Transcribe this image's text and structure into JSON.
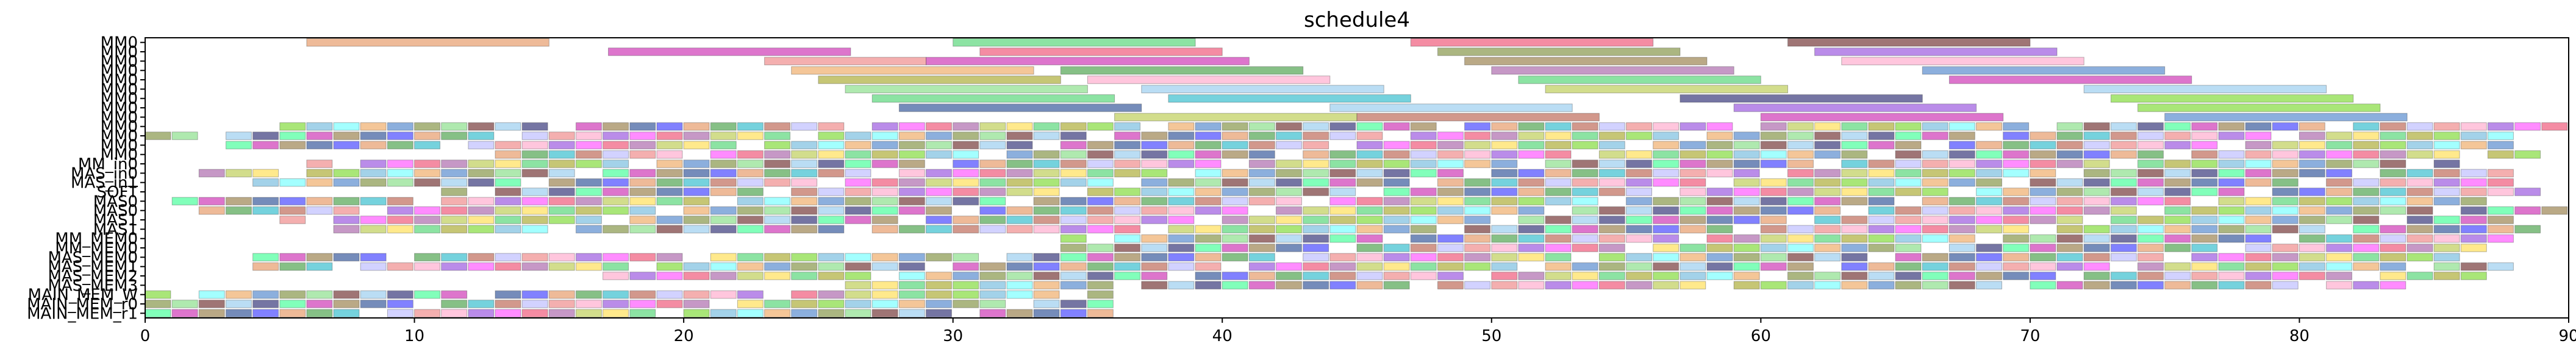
{
  "chart_data": {
    "type": "bar",
    "subtype": "gantt",
    "title": "schedule4",
    "xlabel": "",
    "ylabel": "",
    "xlim": [
      0,
      90
    ],
    "x_ticks": [
      0,
      10,
      20,
      30,
      40,
      50,
      60,
      70,
      80,
      90
    ],
    "grid": false,
    "legend": "none",
    "rows": [
      "MM0",
      "MM0",
      "MM0",
      "MM0",
      "MM0",
      "MM0",
      "MM0",
      "MM0",
      "MM0",
      "MM0",
      "MM0",
      "MM0",
      "MM0",
      "MM_in0",
      "MAS_in0",
      "MAS_in1",
      "SOFT",
      "MAS0",
      "MAS0",
      "MAS1",
      "MAS1",
      "MM_MEM0",
      "MM_MEM0",
      "MAS_MEM0",
      "MAS_MEM1",
      "MAS_MEM2",
      "MAS_MEM3",
      "MAIN_MEM_W",
      "MAIN_MEM_r0",
      "MAIN_MEM_r1"
    ],
    "palette": [
      "#e8a070",
      "#60d880",
      "#d040b8",
      "#f06080",
      "#7a4040",
      "#f09090",
      "#f0b070",
      "#58a858",
      "#b0b040",
      "#a08858",
      "#b070b0",
      "#a0d0f0",
      "#ffb0d0",
      "#6090d0",
      "#40c0d0",
      "#88dd44",
      "#4060a0",
      "#c0d060",
      "#404080",
      "#a060e0",
      "#8a9a50",
      "#c07060",
      "#80c0e0",
      "#5050ff",
      "#ffe060",
      "#50ffa0",
      "#ff60ff",
      "#90e090",
      "#c0c0ff",
      "#80ffff"
    ],
    "bars": [
      {
        "row": 0,
        "start": 6.0,
        "end": 15.0,
        "c": 0
      },
      {
        "row": 0,
        "start": 30.0,
        "end": 39.0,
        "c": 1
      },
      {
        "row": 0,
        "start": 47.0,
        "end": 56.0,
        "c": 3
      },
      {
        "row": 0,
        "start": 61.0,
        "end": 70.0,
        "c": 4
      },
      {
        "row": 1,
        "start": 17.2,
        "end": 26.2,
        "c": 2
      },
      {
        "row": 1,
        "start": 31.0,
        "end": 40.0,
        "c": 3
      },
      {
        "row": 1,
        "start": 48.0,
        "end": 57.0,
        "c": 20
      },
      {
        "row": 1,
        "start": 62.0,
        "end": 71.0,
        "c": 19
      },
      {
        "row": 2,
        "start": 23.0,
        "end": 29.0,
        "c": 5
      },
      {
        "row": 2,
        "start": 29.0,
        "end": 41.0,
        "c": 2
      },
      {
        "row": 2,
        "start": 49.0,
        "end": 58.0,
        "c": 9
      },
      {
        "row": 2,
        "start": 63.0,
        "end": 72.0,
        "c": 12
      },
      {
        "row": 3,
        "start": 24.0,
        "end": 33.0,
        "c": 6
      },
      {
        "row": 3,
        "start": 34.0,
        "end": 43.0,
        "c": 7
      },
      {
        "row": 3,
        "start": 50.0,
        "end": 59.0,
        "c": 10
      },
      {
        "row": 3,
        "start": 66.0,
        "end": 75.0,
        "c": 13
      },
      {
        "row": 4,
        "start": 25.0,
        "end": 34.0,
        "c": 8
      },
      {
        "row": 4,
        "start": 35.0,
        "end": 44.0,
        "c": 12
      },
      {
        "row": 4,
        "start": 51.0,
        "end": 60.0,
        "c": 1
      },
      {
        "row": 4,
        "start": 67.0,
        "end": 76.0,
        "c": 2
      },
      {
        "row": 5,
        "start": 26.0,
        "end": 35.0,
        "c": 27
      },
      {
        "row": 5,
        "start": 37.0,
        "end": 46.0,
        "c": 11
      },
      {
        "row": 5,
        "start": 52.0,
        "end": 61.0,
        "c": 17
      },
      {
        "row": 5,
        "start": 72.0,
        "end": 81.0,
        "c": 11
      },
      {
        "row": 6,
        "start": 27.0,
        "end": 36.0,
        "c": 1
      },
      {
        "row": 6,
        "start": 38.0,
        "end": 47.0,
        "c": 14
      },
      {
        "row": 6,
        "start": 57.0,
        "end": 66.0,
        "c": 18
      },
      {
        "row": 6,
        "start": 73.0,
        "end": 82.0,
        "c": 15
      },
      {
        "row": 7,
        "start": 28.0,
        "end": 37.0,
        "c": 16
      },
      {
        "row": 7,
        "start": 44.0,
        "end": 53.0,
        "c": 11
      },
      {
        "row": 7,
        "start": 59.0,
        "end": 68.0,
        "c": 19
      },
      {
        "row": 7,
        "start": 74.0,
        "end": 83.0,
        "c": 15
      },
      {
        "row": 8,
        "start": 36.0,
        "end": 45.0,
        "c": 17
      },
      {
        "row": 8,
        "start": 45.0,
        "end": 54.0,
        "c": 21
      },
      {
        "row": 8,
        "start": 60.0,
        "end": 69.0,
        "c": 2
      },
      {
        "row": 8,
        "start": 75.0,
        "end": 84.0,
        "c": 13
      }
    ],
    "ticks": [
      {
        "row": 9,
        "t0": 5,
        "t1": 94,
        "step": 1.0,
        "w": 0.95
      },
      {
        "row": 10,
        "t0": 0,
        "t1": 88,
        "step": 1.0,
        "w": 0.95
      },
      {
        "row": 11,
        "t0": 3,
        "t1": 89,
        "step": 1.0,
        "w": 0.95
      },
      {
        "row": 12,
        "t0": 13,
        "t1": 89,
        "step": 1.0,
        "w": 0.95
      },
      {
        "row": 13,
        "t0": 6,
        "t1": 86,
        "step": 1.0,
        "w": 0.95
      },
      {
        "row": 14,
        "t0": 2,
        "t1": 88,
        "step": 1.0,
        "w": 0.95
      },
      {
        "row": 15,
        "t0": 3,
        "t1": 88,
        "step": 1.0,
        "w": 0.95
      },
      {
        "row": 16,
        "t0": 11,
        "t1": 89,
        "step": 1.0,
        "w": 0.95
      },
      {
        "row": 17,
        "t0": 1,
        "t1": 88,
        "step": 1.0,
        "w": 0.95
      },
      {
        "row": 18,
        "t0": 2,
        "t1": 90,
        "step": 1.0,
        "w": 0.95
      },
      {
        "row": 19,
        "t0": 5,
        "t1": 88,
        "step": 1.0,
        "w": 0.95
      },
      {
        "row": 20,
        "t0": 7,
        "t1": 89,
        "step": 1.0,
        "w": 0.95
      },
      {
        "row": 21,
        "t0": 34,
        "t1": 88,
        "step": 1.0,
        "w": 0.95
      },
      {
        "row": 22,
        "t0": 34,
        "t1": 87,
        "step": 1.0,
        "w": 0.95
      },
      {
        "row": 23,
        "t0": 4,
        "t1": 86,
        "step": 1.0,
        "w": 0.95
      },
      {
        "row": 24,
        "t0": 4,
        "t1": 88,
        "step": 1.0,
        "w": 0.95
      },
      {
        "row": 25,
        "t0": 16,
        "t1": 87,
        "step": 1.0,
        "w": 0.95
      },
      {
        "row": 26,
        "t0": 25,
        "t1": 84,
        "step": 1.0,
        "w": 0.95
      },
      {
        "row": 27,
        "t0": 0,
        "t1": 36,
        "step": 1.0,
        "w": 0.95
      },
      {
        "row": 28,
        "t0": 0,
        "t1": 36,
        "step": 1.0,
        "w": 0.95
      },
      {
        "row": 29,
        "t0": 0,
        "t1": 36,
        "step": 1.0,
        "w": 0.95
      }
    ]
  }
}
